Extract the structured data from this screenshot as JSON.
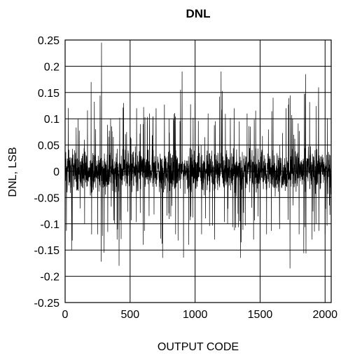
{
  "chart_data": {
    "type": "line",
    "title": "DNL",
    "xlabel": "OUTPUT CODE",
    "ylabel": "DNL, LSB",
    "xlim": [
      0,
      2047
    ],
    "ylim": [
      -0.25,
      0.25
    ],
    "x_ticks": [
      0,
      500,
      1000,
      1500,
      2000
    ],
    "y_ticks": [
      0.25,
      0.2,
      0.15,
      0.1,
      0.05,
      0,
      -0.05,
      -0.1,
      -0.15,
      -0.2,
      -0.25
    ],
    "x_tick_labels": [
      "0",
      "500",
      "1000",
      "1500",
      "2000"
    ],
    "y_tick_labels": [
      "0.25",
      "0.2",
      "0.15",
      "0.1",
      "0.05",
      "0",
      "-0.05",
      "-0.1",
      "-0.15",
      "-0.2",
      "-0.25"
    ],
    "grid": true,
    "series": [
      {
        "color": "#000000",
        "x": [
          0,
          50,
          100,
          150,
          200,
          250,
          280,
          300,
          350,
          400,
          415,
          450,
          500,
          550,
          600,
          650,
          700,
          750,
          800,
          850,
          900,
          950,
          1000,
          1050,
          1100,
          1150,
          1200,
          1250,
          1300,
          1350,
          1400,
          1450,
          1500,
          1550,
          1600,
          1650,
          1700,
          1730,
          1750,
          1800,
          1850,
          1900,
          1950,
          2000,
          2047
        ],
        "values": [
          0.12,
          -0.15,
          0.1,
          -0.1,
          0.17,
          -0.12,
          0.245,
          -0.155,
          0.1,
          -0.13,
          -0.18,
          0.13,
          -0.11,
          0.12,
          -0.14,
          0.11,
          0.12,
          -0.165,
          0.1,
          -0.12,
          0.19,
          -0.14,
          0.13,
          -0.12,
          0.11,
          -0.13,
          0.19,
          -0.1,
          0.12,
          -0.165,
          0.11,
          -0.13,
          0.12,
          -0.12,
          0.14,
          -0.11,
          0.12,
          -0.185,
          0.1,
          -0.12,
          0.185,
          -0.13,
          0.16,
          -0.12,
          0.1
        ]
      }
    ]
  }
}
